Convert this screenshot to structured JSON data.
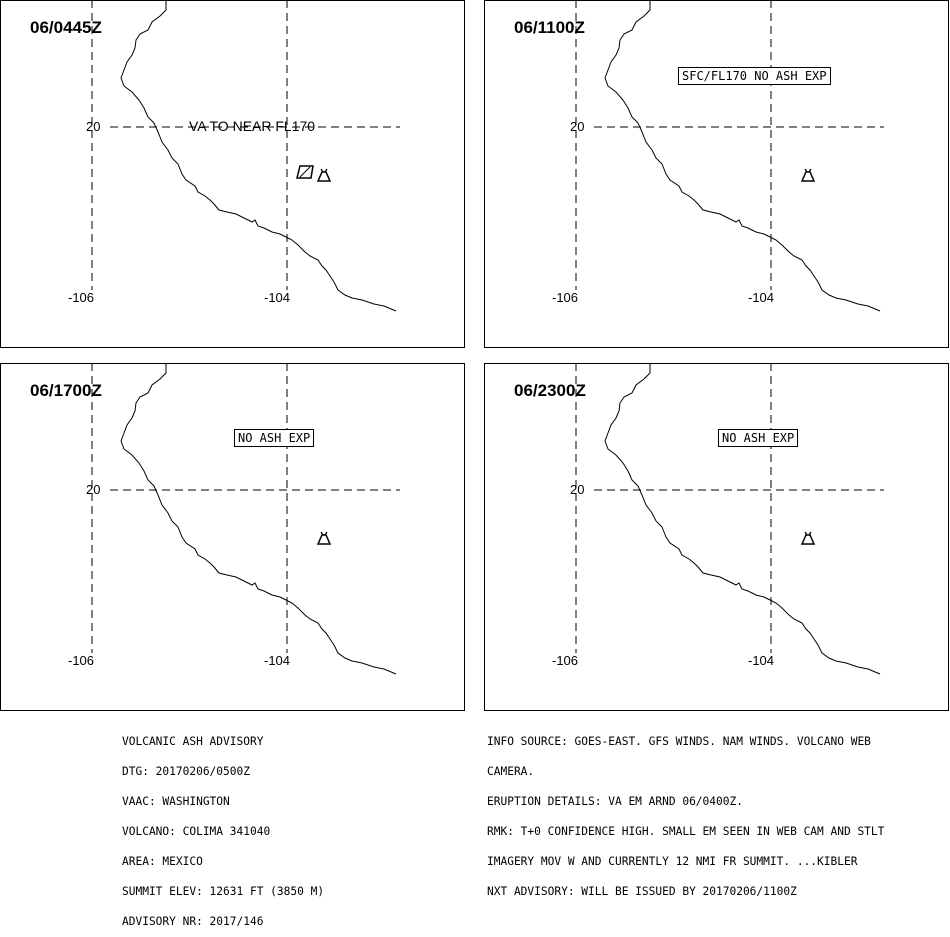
{
  "panels": [
    {
      "time": "06/0445Z",
      "lat_label": "20",
      "lon_labels": [
        "-106",
        "-104"
      ],
      "label": "VA TO NEAR FL170",
      "label_style": "plain",
      "ash_polygon": true,
      "volcano_icon": "volcano-icon"
    },
    {
      "time": "06/1100Z",
      "lat_label": "20",
      "lon_labels": [
        "-106",
        "-104"
      ],
      "label": "SFC/FL170 NO ASH EXP",
      "label_style": "boxed",
      "ash_polygon": false,
      "volcano_icon": "volcano-icon"
    },
    {
      "time": "06/1700Z",
      "lat_label": "20",
      "lon_labels": [
        "-106",
        "-104"
      ],
      "label": "NO ASH EXP",
      "label_style": "boxed",
      "ash_polygon": false,
      "volcano_icon": "volcano-icon"
    },
    {
      "time": "06/2300Z",
      "lat_label": "20",
      "lon_labels": [
        "-106",
        "-104"
      ],
      "label": "NO ASH EXP",
      "label_style": "boxed",
      "ash_polygon": false,
      "volcano_icon": "volcano-icon"
    }
  ],
  "advisory_left": [
    "VOLCANIC ASH ADVISORY",
    "DTG: 20170206/0500Z",
    "VAAC: WASHINGTON",
    "VOLCANO: COLIMA 341040",
    "AREA: MEXICO",
    "SUMMIT ELEV: 12631 FT (3850 M)",
    "ADVISORY NR: 2017/146"
  ],
  "advisory_right": [
    "INFO SOURCE: GOES-EAST. GFS WINDS. NAM WINDS. VOLCANO WEB",
    "CAMERA.",
    "ERUPTION DETAILS: VA EM ARND 06/0400Z.",
    "RMK: T+0 CONFIDENCE HIGH. SMALL EM SEEN IN WEB CAM AND STLT",
    "IMAGERY MOV W AND CURRENTLY 12 NMI FR SUMMIT. ...KIBLER",
    "NXT ADVISORY: WILL BE ISSUED BY 20170206/1100Z"
  ],
  "colors": {
    "line": "#000000",
    "background": "#ffffff"
  }
}
